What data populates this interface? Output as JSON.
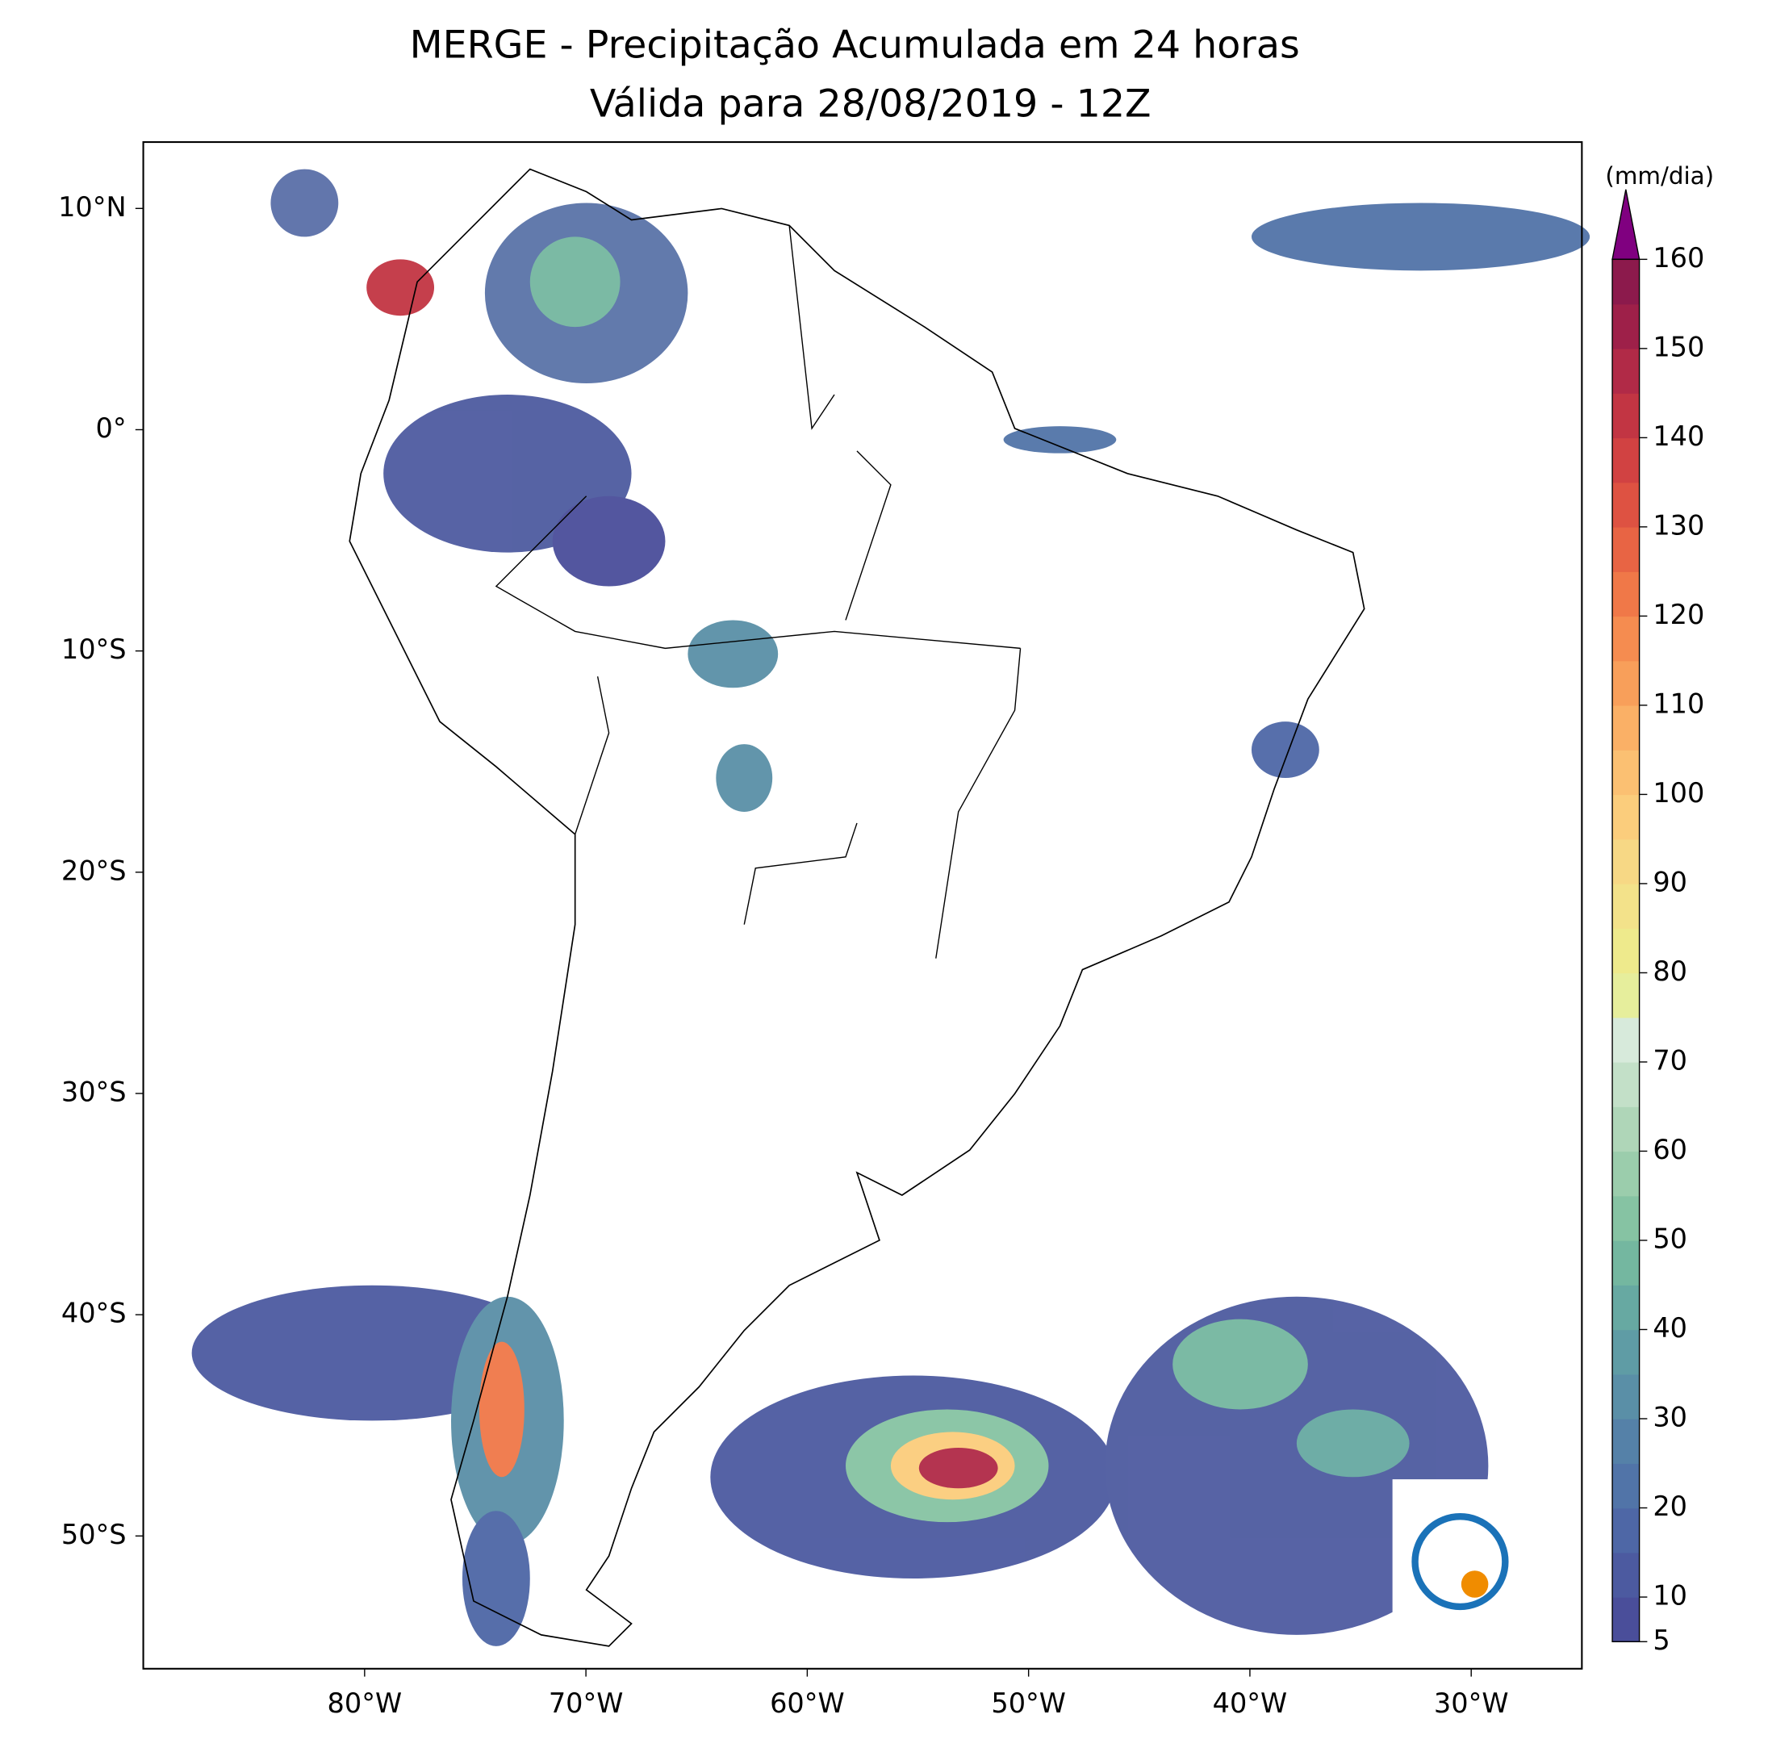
{
  "title": "MERGE - Precipitação Acumulada em 24 horas",
  "subtitle": "Válida para 28/08/2019 - 12Z",
  "map": {
    "xlim": [
      -90,
      -25
    ],
    "ylim": [
      -56,
      13
    ],
    "xticks": [
      {
        "value": -80,
        "label": "80°W"
      },
      {
        "value": -70,
        "label": "70°W"
      },
      {
        "value": -60,
        "label": "60°W"
      },
      {
        "value": -50,
        "label": "50°W"
      },
      {
        "value": -40,
        "label": "40°W"
      },
      {
        "value": -30,
        "label": "30°W"
      }
    ],
    "yticks": [
      {
        "value": 10,
        "label": "10°N"
      },
      {
        "value": 0,
        "label": "0°"
      },
      {
        "value": -10,
        "label": "10°S"
      },
      {
        "value": -20,
        "label": "20°S"
      },
      {
        "value": -30,
        "label": "30°S"
      },
      {
        "value": -40,
        "label": "40°S"
      },
      {
        "value": -50,
        "label": "50°S"
      }
    ]
  },
  "colorbar": {
    "label": "(mm/dia)",
    "lim": [
      5,
      160
    ],
    "ticks": [
      5,
      10,
      20,
      30,
      40,
      50,
      60,
      70,
      80,
      90,
      100,
      110,
      120,
      130,
      140,
      150,
      160
    ],
    "colors": [
      "#4a4e9a",
      "#4c5aa0",
      "#4e67a6",
      "#5174a8",
      "#5581a8",
      "#5a8fa7",
      "#5f9ca5",
      "#67a9a2",
      "#74b7a0",
      "#86c3a3",
      "#9bcdac",
      "#afd6b8",
      "#c3e0c8",
      "#d7eadb",
      "#e6ee9c",
      "#eeea8c",
      "#f3e28a",
      "#f7d885",
      "#fbcd7c",
      "#fbc072",
      "#fab066",
      "#f89f5a",
      "#f58c50",
      "#f07848",
      "#e86444",
      "#de5242",
      "#d14242",
      "#c23543",
      "#b12a47",
      "#9e2049",
      "#8c1a4c"
    ],
    "extend_color": "#800080"
  }
}
